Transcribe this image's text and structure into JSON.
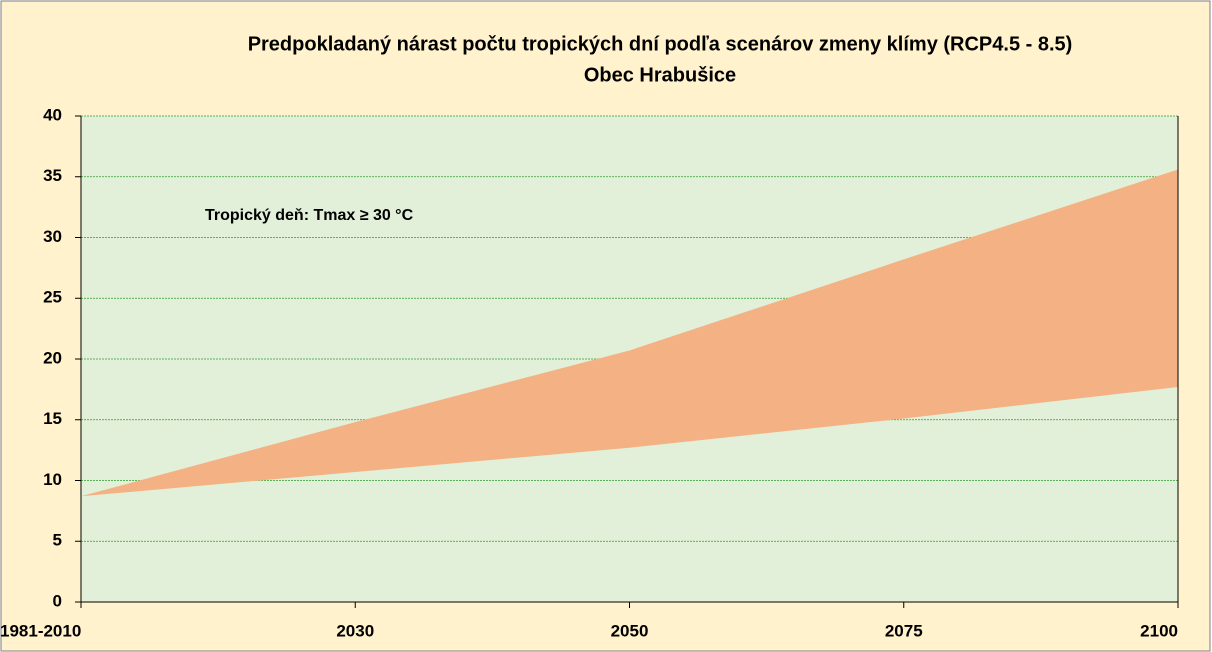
{
  "chart_data": {
    "type": "band",
    "title": "Predpokladaný nárast počtu tropických dní podľa scenárov zmeny klímy (RCP4.5 - 8.5)",
    "subtitle": "Obec Hrabušice",
    "annotation": "Tropický deň: Tmax ≥ 30 °C",
    "categories": [
      "1981-2010",
      "2030",
      "2050",
      "2075",
      "2100"
    ],
    "series": [
      {
        "color": "#f4b183",
        "values": [
          8.7,
          10.7,
          12.7,
          15.1,
          17.7
        ]
      },
      {
        "color": "#f4b183",
        "values": [
          8.7,
          14.8,
          20.7,
          28.2,
          35.6
        ]
      }
    ],
    "ylim": [
      0,
      40
    ],
    "yticks": [
      0,
      5,
      10,
      15,
      20,
      25,
      30,
      35,
      40
    ],
    "grid": true
  }
}
